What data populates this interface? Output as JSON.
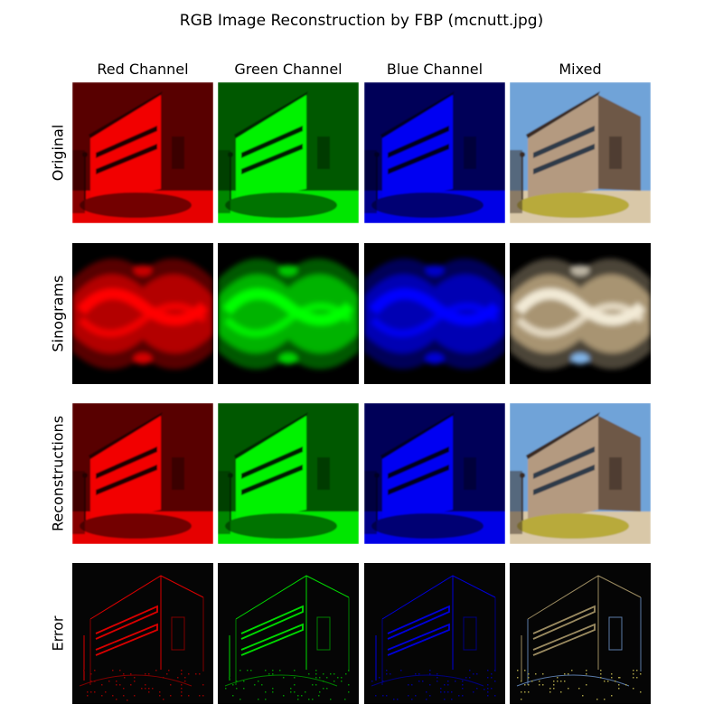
{
  "figure": {
    "title": "RGB Image Reconstruction by FBP (mcnutt.jpg)"
  },
  "columns": [
    "Red Channel",
    "Green Channel",
    "Blue Channel",
    "Mixed"
  ],
  "rows": [
    "Original",
    "Sinograms",
    "Reconstructions",
    "Error"
  ],
  "colors": {
    "red": "#ff0000",
    "green": "#00ff00",
    "blue": "#0000ff",
    "sky": "#6fa3d8",
    "wall": "#b49a80",
    "grass": "#b8aa3a",
    "background": "#ffffff"
  }
}
